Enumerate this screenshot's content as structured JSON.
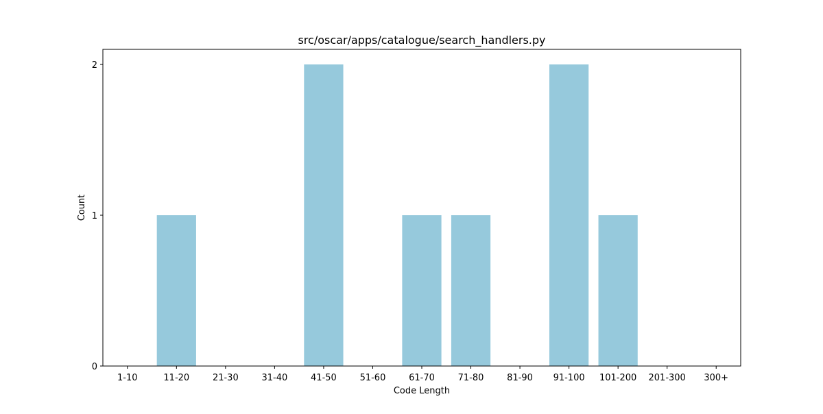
{
  "chart_data": {
    "type": "bar",
    "title": "src/oscar/apps/catalogue/search_handlers.py",
    "xlabel": "Code Length",
    "ylabel": "Count",
    "categories": [
      "1-10",
      "11-20",
      "21-30",
      "31-40",
      "41-50",
      "51-60",
      "61-70",
      "71-80",
      "81-90",
      "91-100",
      "101-200",
      "201-300",
      "300+"
    ],
    "values": [
      0,
      1,
      0,
      0,
      2,
      0,
      1,
      1,
      0,
      2,
      1,
      0,
      0
    ],
    "ylim": [
      0,
      2.1
    ],
    "yticks": [
      0,
      1,
      2
    ],
    "grid": false,
    "colors": {
      "bar": "#96c9dc",
      "axis": "#000000"
    }
  }
}
